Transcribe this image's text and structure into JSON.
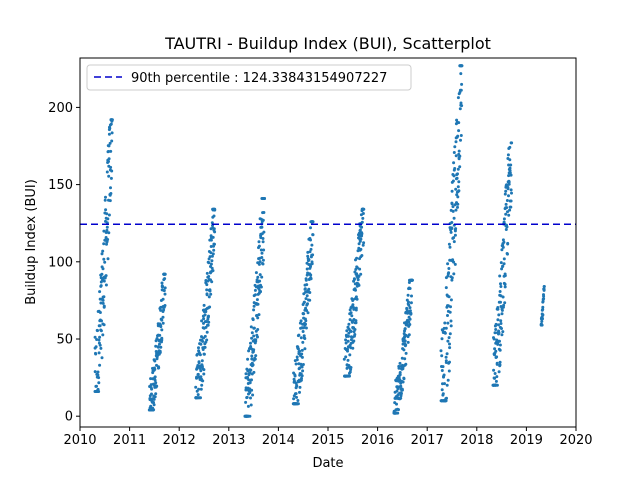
{
  "chart_data": {
    "type": "scatter",
    "title": "TAUTRI - Buildup Index (BUI), Scatterplot",
    "xlabel": "Date",
    "ylabel": "Buildup Index (BUI)",
    "xlim": [
      2010,
      2020
    ],
    "ylim": [
      -7,
      232
    ],
    "xticks": [
      "2010",
      "2011",
      "2012",
      "2013",
      "2014",
      "2015",
      "2016",
      "2017",
      "2018",
      "2019",
      "2020"
    ],
    "yticks": [
      0,
      50,
      100,
      150,
      200
    ],
    "grid": false,
    "legend_location": "upper left",
    "reference_line": {
      "label": "90th percentile : 124.33843154907227",
      "value": 124.33843154907227,
      "style": "dashed",
      "color": "#0000cc"
    },
    "marker_color": "#1f77b4",
    "seasons": [
      {
        "start": 2010.3,
        "end": 2010.65,
        "min": 16,
        "max": 192
      },
      {
        "start": 2011.4,
        "end": 2011.72,
        "min": 4,
        "max": 92
      },
      {
        "start": 2012.33,
        "end": 2012.72,
        "min": 12,
        "max": 134
      },
      {
        "start": 2013.33,
        "end": 2013.72,
        "min": 0,
        "max": 141
      },
      {
        "start": 2014.3,
        "end": 2014.7,
        "min": 8,
        "max": 126
      },
      {
        "start": 2015.33,
        "end": 2015.72,
        "min": 26,
        "max": 134
      },
      {
        "start": 2016.33,
        "end": 2016.7,
        "min": 2,
        "max": 88
      },
      {
        "start": 2017.28,
        "end": 2017.7,
        "min": 10,
        "max": 227
      },
      {
        "start": 2018.33,
        "end": 2018.7,
        "min": 20,
        "max": 177
      },
      {
        "start": 2019.3,
        "end": 2019.36,
        "min": 59,
        "max": 84
      }
    ]
  }
}
